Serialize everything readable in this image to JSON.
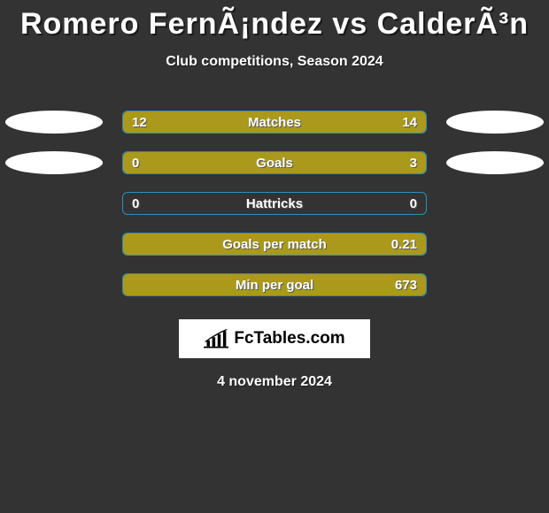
{
  "background_color": "#333333",
  "accent_bar_color": "#aa991b",
  "border_color": "#2b8fbf",
  "oval_left_color": "#ffffff",
  "oval_right_color": "#ffffff",
  "title": "Romero FernÃ¡ndez vs CalderÃ³n",
  "title_fontsize": 34,
  "subtitle": "Club competitions, Season 2024",
  "subtitle_fontsize": 16,
  "bar_area_width": 344,
  "rows": [
    {
      "label": "Matches",
      "left": "12",
      "right": "14",
      "left_fill_pct": 46,
      "right_fill_pct": 54,
      "show_left_oval": true,
      "show_right_oval": true
    },
    {
      "label": "Goals",
      "left": "0",
      "right": "3",
      "left_fill_pct": 16,
      "right_fill_pct": 84,
      "show_left_oval": true,
      "show_right_oval": true
    },
    {
      "label": "Hattricks",
      "left": "0",
      "right": "0",
      "left_fill_pct": 0,
      "right_fill_pct": 0,
      "show_left_oval": false,
      "show_right_oval": false
    },
    {
      "label": "Goals per match",
      "left": "",
      "right": "0.21",
      "left_fill_pct": 0,
      "right_fill_pct": 100,
      "show_left_oval": false,
      "show_right_oval": false
    },
    {
      "label": "Min per goal",
      "left": "",
      "right": "673",
      "left_fill_pct": 0,
      "right_fill_pct": 100,
      "show_left_oval": false,
      "show_right_oval": false
    }
  ],
  "logo_text": "FcTables.com",
  "date": "4 november 2024"
}
